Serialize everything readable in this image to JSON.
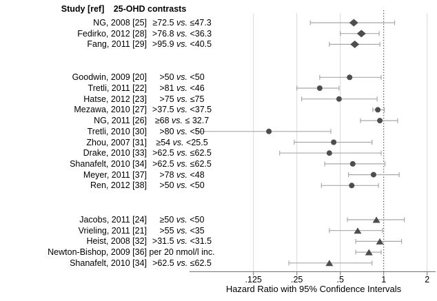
{
  "title_row": {
    "study_label": "Study [ref]",
    "contrast_label": "25-OHD contrasts"
  },
  "axis": {
    "label": "Hazard Ratio with 95% Confidence Intervals",
    "ticks": [
      ".125",
      ".25",
      ".5",
      "1",
      "2"
    ],
    "tick_values": [
      0.125,
      0.25,
      0.5,
      1,
      2
    ],
    "scale": "log2",
    "reference_line": 1
  },
  "colors": {
    "marker": "#4d4d4d",
    "ci_line": "#a8a8a8",
    "gridline": "#d9d9d9",
    "axis_line": "#737373",
    "reference_line": "#1a1a1a",
    "text": "#000000",
    "background": "#ffffff"
  },
  "chart_data": {
    "type": "scatter",
    "subtype": "forest-plot",
    "title": "",
    "xlabel": "Hazard Ratio with 95% Confidence Intervals",
    "x_ticks": [
      0.125,
      0.25,
      0.5,
      1,
      2
    ],
    "xlim": [
      0.045,
      2.3
    ],
    "grid": "vertical-at-ticks",
    "reference_line_x": 1,
    "groups": [
      {
        "marker": "diamond",
        "rows": [
          {
            "study": "NG, 2008 [25]",
            "contrast": {
              "left": "≥72.5",
              "vs": "vs.",
              "right": "≤47.3"
            },
            "hr": 0.62,
            "ci_low": 0.31,
            "ci_high": 1.19
          },
          {
            "study": "Fedirko, 2012 [28]",
            "contrast": {
              "left": ">76.8",
              "vs": "vs.",
              "right": "<36.3"
            },
            "hr": 0.7,
            "ci_low": 0.5,
            "ci_high": 0.93
          },
          {
            "study": "Fang, 2011 [29]",
            "contrast": {
              "left": ">95.9",
              "vs": "vs.",
              "right": "<40.5"
            },
            "hr": 0.63,
            "ci_low": 0.42,
            "ci_high": 0.94
          }
        ]
      },
      {
        "marker": "circle",
        "rows": [
          {
            "study": "Goodwin, 2009 [20]",
            "contrast": {
              "left": ">50",
              "vs": "vs.",
              "right": "<50"
            },
            "hr": 0.58,
            "ci_low": 0.36,
            "ci_high": 0.96
          },
          {
            "study": "Tretli, 2011 [22]",
            "contrast": {
              "left": ">81",
              "vs": "vs.",
              "right": "<46"
            },
            "hr": 0.36,
            "ci_low": 0.25,
            "ci_high": 0.49
          },
          {
            "study": "Hatse, 2012 [23]",
            "contrast": {
              "left": ">75",
              "vs": "vs.",
              "right": "≤75"
            },
            "hr": 0.49,
            "ci_low": 0.27,
            "ci_high": 0.9
          },
          {
            "study": "Mezawa, 2010 [27]",
            "contrast": {
              "left": ">37.5",
              "vs": "vs.",
              "right": "<37.5"
            },
            "hr": 0.91,
            "ci_low": 0.84,
            "ci_high": 1.01
          },
          {
            "study": "NG, 2011 [26]",
            "contrast": {
              "left": "≥68",
              "vs": "vs.",
              "right": "≤ 32.7"
            },
            "hr": 0.94,
            "ci_low": 0.69,
            "ci_high": 1.25
          },
          {
            "study": "Tretli, 2010 [30]",
            "contrast": {
              "left": ">80",
              "vs": "vs.",
              "right": "<50"
            },
            "hr": 0.16,
            "ci_low": 0.05,
            "ci_high": 0.43
          },
          {
            "study": "Zhou, 2007 [31]",
            "contrast": {
              "left": "≥54",
              "vs": "vs.",
              "right": "<25.5"
            },
            "hr": 0.45,
            "ci_low": 0.24,
            "ci_high": 0.83
          },
          {
            "study": "Drake, 2010 [33]",
            "contrast": {
              "left": ">62.5",
              "vs": "vs.",
              "right": "≤62.5"
            },
            "hr": 0.42,
            "ci_low": 0.19,
            "ci_high": 0.96
          },
          {
            "study": "Shanafelt, 2010 [34]",
            "contrast": {
              "left": ">62.5",
              "vs": "vs.",
              "right": "≤62.5"
            },
            "hr": 0.61,
            "ci_low": 0.39,
            "ci_high": 1.02
          },
          {
            "study": "Meyer, 2011 [37]",
            "contrast": {
              "left": ">78",
              "vs": "vs.",
              "right": "<48"
            },
            "hr": 0.85,
            "ci_low": 0.57,
            "ci_high": 1.28
          },
          {
            "study": "Ren, 2012 [38]",
            "contrast": {
              "left": ">50",
              "vs": "vs.",
              "right": "<50"
            },
            "hr": 0.6,
            "ci_low": 0.37,
            "ci_high": 0.92
          }
        ]
      },
      {
        "marker": "triangle",
        "rows": [
          {
            "study": "Jacobs, 2011 [24]",
            "contrast": {
              "left": "≥50",
              "vs": "vs.",
              "right": "<50"
            },
            "hr": 0.89,
            "ci_low": 0.56,
            "ci_high": 1.39
          },
          {
            "study": "Vrieling, 2011 [21]",
            "contrast": {
              "left": ">55",
              "vs": "vs.",
              "right": "<35"
            },
            "hr": 0.66,
            "ci_low": 0.42,
            "ci_high": 0.98
          },
          {
            "study": "Heist, 2008 [32]",
            "contrast": {
              "left": ">31.5",
              "vs": "vs.",
              "right": "<31.5"
            },
            "hr": 0.94,
            "ci_low": 0.64,
            "ci_high": 1.33
          },
          {
            "study": "Newton-Bishop, 2009 [36]",
            "contrast": {
              "left": "per 20 nmol/l inc.",
              "vs": "",
              "right": ""
            },
            "hr": 0.79,
            "ci_low": 0.64,
            "ci_high": 0.96
          },
          {
            "study": "Shanafelt, 2010 [34]",
            "contrast": {
              "left": ">62.5",
              "vs": "vs.",
              "right": "≤62.5"
            },
            "hr": 0.42,
            "ci_low": 0.22,
            "ci_high": 0.83
          }
        ]
      }
    ]
  }
}
